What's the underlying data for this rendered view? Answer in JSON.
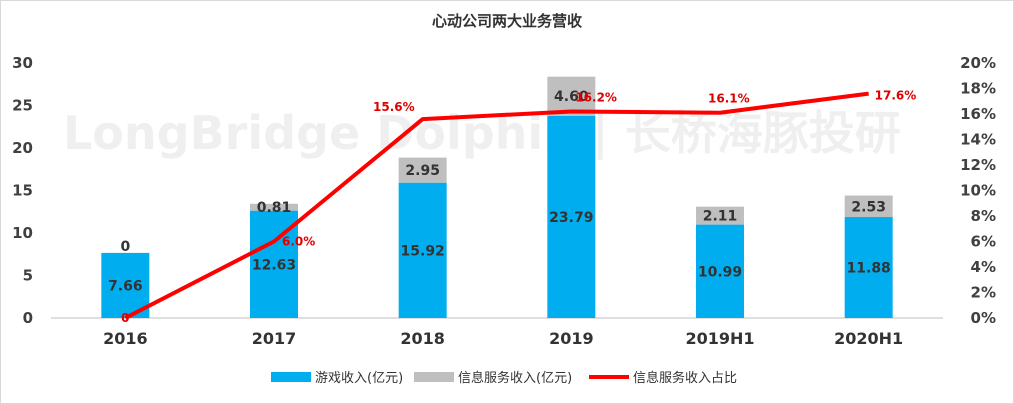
{
  "chart_data": {
    "type": "bar",
    "title": "心动公司两大业务营收",
    "watermark": "LongBridge Dolphin | 长桥海豚投研",
    "categories": [
      "2016",
      "2017",
      "2018",
      "2019",
      "2019H1",
      "2020H1"
    ],
    "stacked": true,
    "ylim_left": [
      0,
      30
    ],
    "yticks_left": [
      "0",
      "5",
      "10",
      "15",
      "20",
      "25",
      "30"
    ],
    "ylim_right": [
      0,
      20
    ],
    "yticks_right": [
      "0%",
      "2%",
      "4%",
      "6%",
      "8%",
      "10%",
      "12%",
      "14%",
      "16%",
      "18%",
      "20%"
    ],
    "series": [
      {
        "name": "游戏收入(亿元)",
        "type": "bar",
        "axis": "left",
        "color": "#00aeef",
        "values": [
          7.66,
          12.63,
          15.92,
          23.79,
          10.99,
          11.88
        ],
        "labels": [
          "7.66",
          "12.63",
          "15.92",
          "23.79",
          "10.99",
          "11.88"
        ]
      },
      {
        "name": "信息服务收入(亿元)",
        "type": "bar",
        "axis": "left",
        "color": "#bfbfbf",
        "values": [
          0,
          0.81,
          2.95,
          4.6,
          2.11,
          2.53
        ],
        "labels": [
          "0",
          "0.81",
          "2.95",
          "4.60",
          "2.11",
          "2.53"
        ]
      },
      {
        "name": "信息服务收入占比",
        "type": "line",
        "axis": "right",
        "color": "#ff0000",
        "values": [
          0,
          6.0,
          15.6,
          16.2,
          16.1,
          17.6
        ],
        "labels": [
          "0",
          "6.0%",
          "15.6%",
          "16.2%",
          "16.1%",
          "17.6%"
        ]
      }
    ],
    "grid": false,
    "legend_position": "bottom"
  }
}
